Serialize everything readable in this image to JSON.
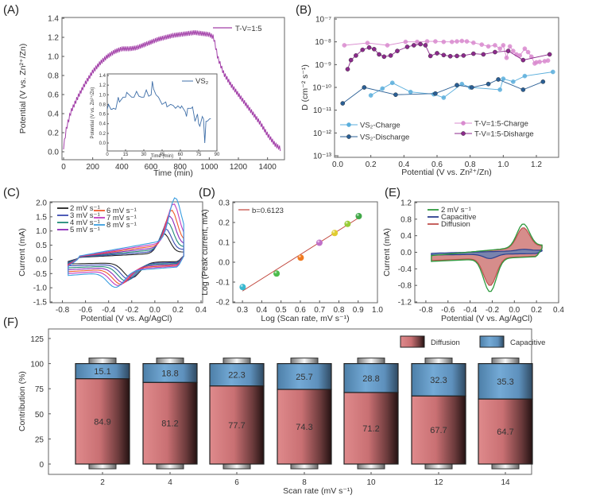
{
  "panels": {
    "A": {
      "label": "(A)"
    },
    "B": {
      "label": "(B)"
    },
    "C": {
      "label": "(C)"
    },
    "D": {
      "label": "(D)"
    },
    "E": {
      "label": "(E)"
    },
    "F": {
      "label": "(F)"
    }
  },
  "chart_data": [
    {
      "id": "A",
      "type": "line",
      "title": "",
      "xlabel": "Time (min)",
      "ylabel": "Potential (V vs. Zn²⁺/Zn)",
      "xlim": [
        0,
        1500
      ],
      "ylim": [
        0,
        1.4
      ],
      "xticks": [
        "0",
        "200",
        "400",
        "600",
        "800",
        "1000",
        "1200",
        "1400"
      ],
      "yticks": [
        "0.0",
        "0.2",
        "0.4",
        "0.6",
        "0.8",
        "1.0",
        "1.2",
        "1.4"
      ],
      "legend": "top-right",
      "series": [
        {
          "name": "T-V=1:5",
          "color": "#a23fa8",
          "envelope_x": [
            0,
            20,
            50,
            100,
            150,
            200,
            250,
            300,
            350,
            400,
            450,
            500,
            550,
            600,
            650,
            700,
            750,
            800,
            850,
            900,
            950,
            1000,
            1030,
            1060,
            1100,
            1150,
            1200,
            1250,
            1300,
            1350,
            1400,
            1450,
            1490
          ],
          "envelope_y": [
            0.05,
            0.25,
            0.42,
            0.58,
            0.72,
            0.84,
            0.93,
            1.0,
            1.05,
            1.08,
            1.08,
            1.09,
            1.12,
            1.15,
            1.18,
            1.2,
            1.22,
            1.23,
            1.24,
            1.25,
            1.24,
            1.23,
            1.2,
            0.98,
            0.82,
            0.7,
            0.6,
            0.5,
            0.4,
            0.3,
            0.18,
            0.08,
            0.03
          ]
        }
      ],
      "inset": {
        "type": "line",
        "xlabel": "Time (min)",
        "ylabel": "Potential (V vs. Zn²⁺/Zn)",
        "xlim": [
          0,
          90
        ],
        "ylim": [
          -0.1,
          1.4
        ],
        "xticks": [
          "0",
          "15",
          "30",
          "45",
          "60",
          "75",
          "90"
        ],
        "yticks": [
          "0.0",
          "0.2",
          "0.4",
          "0.6",
          "0.8",
          "1.0",
          "1.2",
          "1.4"
        ],
        "series": [
          {
            "name": "VS₂",
            "color": "#3f6fa8",
            "x": [
              0,
              1,
              3,
              4,
              5,
              7,
              9,
              10,
              13,
              15,
              16,
              18,
              20,
              22,
              24,
              26,
              28,
              30,
              32,
              34,
              36,
              37,
              38,
              40,
              42,
              44,
              45,
              48,
              49,
              52,
              54,
              56,
              58,
              60,
              61,
              64,
              65,
              66,
              69,
              70,
              71,
              72,
              74,
              75,
              76,
              78,
              79,
              80,
              81,
              82,
              84,
              85
            ],
            "y": [
              0.7,
              0.8,
              0.7,
              0.7,
              0.72,
              0.7,
              0.95,
              0.85,
              0.95,
              0.95,
              1.05,
              1.0,
              0.95,
              0.95,
              1.07,
              0.97,
              0.95,
              0.95,
              1.1,
              0.97,
              1.0,
              1.28,
              1.12,
              1.0,
              0.95,
              0.85,
              0.8,
              0.85,
              0.75,
              0.8,
              0.78,
              0.72,
              0.77,
              0.72,
              0.77,
              0.65,
              0.55,
              0.72,
              0.72,
              0.75,
              0.6,
              0.45,
              0.6,
              0.4,
              0.35,
              0.55,
              0.5,
              0.0,
              0.45,
              0.45,
              0.5,
              0.5
            ]
          }
        ]
      }
    },
    {
      "id": "B",
      "type": "line",
      "xlabel": "Potential (V vs. Zn²⁺/Zn)",
      "ylabel": "D (cm⁻² s⁻¹)",
      "yscale": "log",
      "xlim": [
        0,
        1.32
      ],
      "ylim": [
        1e-13,
        1e-07
      ],
      "xticks": [
        "0.0",
        "0.2",
        "0.4",
        "0.6",
        "0.8",
        "1.0",
        "1.2"
      ],
      "yticks": [
        "10⁻¹³",
        "10⁻¹²",
        "10⁻¹¹",
        "10⁻¹⁰",
        "10⁻⁹",
        "10⁻⁸",
        "10⁻⁷"
      ],
      "legend": "bottom",
      "series": [
        {
          "name": "VS₂-Charge",
          "color": "#5aaedc",
          "filled": false,
          "x": [
            0.2,
            0.27,
            0.33,
            0.44,
            0.58,
            0.64,
            0.75,
            0.8,
            0.98,
            1.0,
            1.06,
            1.13,
            1.3
          ],
          "log10y": [
            -10.35,
            -10.05,
            -9.8,
            -10.2,
            -10.3,
            -10.45,
            -9.85,
            -10.0,
            -10.1,
            -9.62,
            -9.75,
            -9.5,
            -9.32
          ]
        },
        {
          "name": "VS₂-Discharge",
          "color": "#2a5f95",
          "filled": true,
          "x": [
            0.03,
            0.16,
            0.35,
            0.59,
            0.72,
            0.81,
            0.91,
            0.97,
            1.12,
            1.24
          ],
          "log10y": [
            -10.7,
            -10.0,
            -10.32,
            -10.27,
            -9.9,
            -10.0,
            -9.85,
            -9.65,
            -10.1,
            -9.75
          ]
        },
        {
          "name": "T-V=1:5-Charge",
          "color": "#d98bcf",
          "filled": false,
          "x": [
            0.04,
            0.18,
            0.3,
            0.41,
            0.48,
            0.54,
            0.59,
            0.64,
            0.69,
            0.72,
            0.75,
            0.78,
            0.82,
            0.87,
            0.91,
            0.95,
            0.98,
            1.0,
            1.02,
            1.04,
            1.06,
            1.08,
            1.1,
            1.13,
            1.15,
            1.17,
            1.19,
            1.2,
            1.22,
            1.25,
            1.27
          ],
          "log10y": [
            -8.15,
            -8.05,
            -8.15,
            -8.0,
            -8.0,
            -7.98,
            -7.98,
            -8.0,
            -8.0,
            -7.98,
            -7.96,
            -7.98,
            -8.04,
            -8.12,
            -8.2,
            -8.15,
            -8.3,
            -8.15,
            -8.7,
            -8.2,
            -8.4,
            -8.55,
            -8.6,
            -8.3,
            -8.45,
            -8.65,
            -8.95,
            -8.9,
            -8.88,
            -8.85,
            -8.82
          ]
        },
        {
          "name": "T-V=1:5-Disharge",
          "color": "#8c2a8c",
          "filled": true,
          "x": [
            0.06,
            0.08,
            0.11,
            0.15,
            0.19,
            0.22,
            0.25,
            0.28,
            0.32,
            0.36,
            0.42,
            0.46,
            0.5,
            0.53,
            0.56,
            0.6,
            0.64,
            0.68,
            0.72,
            0.76,
            0.82,
            0.88,
            0.95,
            1.03,
            1.12,
            1.28
          ],
          "log10y": [
            -9.2,
            -8.8,
            -8.6,
            -8.35,
            -8.25,
            -8.32,
            -8.55,
            -8.65,
            -8.6,
            -8.4,
            -8.22,
            -8.15,
            -8.1,
            -8.15,
            -8.62,
            -8.5,
            -8.58,
            -8.63,
            -8.62,
            -8.6,
            -8.52,
            -8.55,
            -8.45,
            -8.4,
            -8.8,
            -8.55
          ]
        }
      ]
    },
    {
      "id": "C",
      "type": "line",
      "xlabel": "Potential (V vs. Ag/AgCl)",
      "ylabel": "Current (mA)",
      "xlim": [
        -0.9,
        0.4
      ],
      "ylim": [
        -1.5,
        2.0
      ],
      "xticks": [
        "-0.8",
        "-0.6",
        "-0.4",
        "-0.2",
        "0.0",
        "0.2",
        "0.4"
      ],
      "yticks": [
        "-1.5",
        "-1.0",
        "-0.5",
        "0.0",
        "0.5",
        "1.0",
        "1.5",
        "2.0"
      ],
      "legend": "top-left",
      "series": [
        {
          "name": "2 mV s⁻¹",
          "color": "#222222",
          "anodic_peak": 0.75,
          "cathodic_peak": -0.72
        },
        {
          "name": "3 mV s⁻¹",
          "color": "#3b4bb0",
          "anodic_peak": 0.88,
          "cathodic_peak": -0.8
        },
        {
          "name": "4 mV s⁻¹",
          "color": "#1f8a78",
          "anodic_peak": 1.05,
          "cathodic_peak": -0.88
        },
        {
          "name": "5 mV s⁻¹",
          "color": "#8a2bb8",
          "anodic_peak": 1.22,
          "cathodic_peak": -0.96
        },
        {
          "name": "6 mV s⁻¹",
          "color": "#ee5a2a",
          "anodic_peak": 1.38,
          "cathodic_peak": -1.03
        },
        {
          "name": "7 mV s⁻¹",
          "color": "#c13bbf",
          "anodic_peak": 1.55,
          "cathodic_peak": -1.1
        },
        {
          "name": "8 mV s⁻¹",
          "color": "#3a9ee0",
          "anodic_peak": 1.7,
          "cathodic_peak": -1.18
        }
      ]
    },
    {
      "id": "D",
      "type": "scatter",
      "xlabel": "Log (Scan rate, mV s⁻¹)",
      "ylabel": "Log (Peak current, mA)",
      "xlim": [
        0.25,
        1.0
      ],
      "ylim": [
        -0.2,
        0.3
      ],
      "xticks": [
        "0.3",
        "0.4",
        "0.5",
        "0.6",
        "0.7",
        "0.8",
        "0.9",
        "1.0"
      ],
      "yticks": [
        "-0.2",
        "-0.1",
        "0.0",
        "0.1",
        "0.2",
        "0.3"
      ],
      "legend": "top-left",
      "fit": {
        "name": "b=0.6123",
        "color": "#c0443a",
        "slope": 0.6123,
        "x": [
          0.3,
          0.9
        ],
        "y": [
          -0.145,
          0.222
        ]
      },
      "x": [
        0.301,
        0.477,
        0.602,
        0.699,
        0.778,
        0.845,
        0.903
      ],
      "y": [
        -0.125,
        -0.057,
        0.023,
        0.098,
        0.147,
        0.193,
        0.232
      ],
      "point_colors": [
        "#38b8d0",
        "#4cbc4c",
        "#f07a20",
        "#c070c8",
        "#e0cc30",
        "#98cc38",
        "#40a848"
      ]
    },
    {
      "id": "E",
      "type": "area",
      "xlabel": "Potential (V vs. Ag/AgCl)",
      "ylabel": "Current (mA)",
      "xlim": [
        -0.9,
        0.4
      ],
      "ylim": [
        -1.2,
        1.2
      ],
      "xticks": [
        "-0.8",
        "-0.6",
        "-0.4",
        "-0.2",
        "0.0",
        "0.2",
        "0.4"
      ],
      "yticks": [
        "-1.2",
        "-0.8",
        "-0.4",
        "0.0",
        "0.4",
        "0.8",
        "1.2"
      ],
      "legend": "top-left",
      "series": [
        {
          "name": "2 mV s⁻¹",
          "color": "#2e9a3e",
          "anodic_peak": 0.78,
          "cathodic_peak": -0.95
        },
        {
          "name": "Capacitive",
          "color": "#2a3f8f",
          "anodic_peak": 0.1,
          "cathodic_peak": -0.15
        },
        {
          "name": "Diffusion",
          "color": "#c0504d",
          "anodic_peak": 0.68,
          "cathodic_peak": -0.8
        }
      ]
    },
    {
      "id": "F",
      "type": "bar",
      "stacked": true,
      "xlabel": "Scan rate (mV s⁻¹)",
      "ylabel": "Contribution (%)",
      "ylim": [
        -10,
        130
      ],
      "yticks": [
        "0",
        "25",
        "50",
        "75",
        "100",
        "125"
      ],
      "legend": "top-right",
      "categories": [
        "2",
        "4",
        "6",
        "8",
        "10",
        "12",
        "14"
      ],
      "series": [
        {
          "name": "Diffusion",
          "color": "#d97c7e",
          "values": [
            84.9,
            81.2,
            77.7,
            74.3,
            71.2,
            67.7,
            64.7
          ]
        },
        {
          "name": "Capacitive",
          "color": "#6fa6d2",
          "values": [
            15.1,
            18.8,
            22.3,
            25.7,
            28.8,
            32.3,
            35.3
          ]
        }
      ]
    }
  ]
}
